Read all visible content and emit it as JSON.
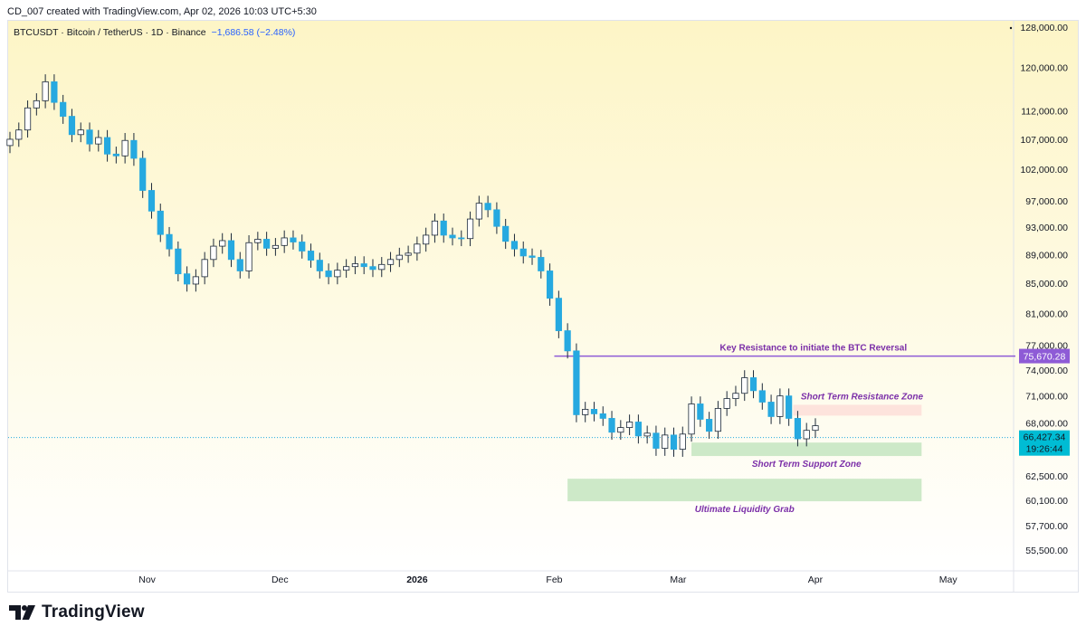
{
  "header": {
    "credit": "CD_007 created with TradingView.com, Apr 02, 2026 10:03 UTC+5:30"
  },
  "branding": {
    "logo_text": "TradingView",
    "logo_icon": "tradingview-logo-icon"
  },
  "colors": {
    "up": "#ffffff",
    "down": "#26a9e0",
    "wick": "#1d2a3a",
    "resistance_line": "#8e5bd6",
    "annotation_text": "#7b2fa8",
    "support_zone": "#cde9c8",
    "resistance_zone": "#fde3dc",
    "last_price_bg": "#00bcd4",
    "bg_top": "#fdf5c6",
    "bg_bottom": "#ffffff"
  },
  "chart_data": {
    "type": "candlestick",
    "title": "BTCUSDT · Bitcoin / TetherUS · 1D · Binance",
    "change": "−1,686.58 (−2.48%)",
    "y_scale": "log",
    "ylim": [
      53500,
      130000
    ],
    "grid": false,
    "y_ticks": [
      "128,000.00",
      "120,000.00",
      "112,000.00",
      "107,000.00",
      "102,000.00",
      "97,000.00",
      "93,000.00",
      "89,000.00",
      "85,000.00",
      "81,000.00",
      "77,000.00",
      "74,000.00",
      "71,000.00",
      "68,000.00",
      "62,500.00",
      "60,100.00",
      "57,700.00",
      "55,500.00"
    ],
    "x_ticks": [
      {
        "label": "Nov",
        "date": "2025-11-01",
        "bold": false
      },
      {
        "label": "Dec",
        "date": "2025-12-01",
        "bold": false
      },
      {
        "label": "2026",
        "date": "2026-01-01",
        "bold": true
      },
      {
        "label": "Feb",
        "date": "2026-02-01",
        "bold": false
      },
      {
        "label": "Mar",
        "date": "2026-03-01",
        "bold": false
      },
      {
        "label": "Apr",
        "date": "2026-04-01",
        "bold": false
      },
      {
        "label": "May",
        "date": "2026-05-01",
        "bold": false
      }
    ],
    "last_price": {
      "label": "66,427.34",
      "value": 66427.34,
      "countdown": "19:26:44"
    },
    "resistance": {
      "label": "75,670.28",
      "value": 75670.28,
      "text": "Key Resistance to initiate the BTC Reversal",
      "from": "2026-02-01",
      "to": "2026-05-14"
    },
    "zones": [
      {
        "name": "Short Term Resistance Zone",
        "from": "2026-03-27",
        "to": "2026-04-25",
        "low": 68800,
        "high": 70000,
        "kind": "resistance"
      },
      {
        "name": "Short Term Support Zone",
        "from": "2026-03-04",
        "to": "2026-04-25",
        "low": 64500,
        "high": 65900,
        "kind": "support"
      },
      {
        "name": "Ultimate Liquidity Grab",
        "from": "2026-02-04",
        "to": "2026-04-25",
        "low": 60000,
        "high": 62200,
        "kind": "support"
      }
    ],
    "closes": [
      [
        "2025-10-01",
        107000
      ],
      [
        "2025-10-03",
        108600
      ],
      [
        "2025-10-05",
        112500
      ],
      [
        "2025-10-07",
        113800
      ],
      [
        "2025-10-09",
        117300
      ],
      [
        "2025-10-11",
        113500
      ],
      [
        "2025-10-13",
        111000
      ],
      [
        "2025-10-15",
        107800
      ],
      [
        "2025-10-17",
        108600
      ],
      [
        "2025-10-19",
        106200
      ],
      [
        "2025-10-21",
        107300
      ],
      [
        "2025-10-23",
        104500
      ],
      [
        "2025-10-25",
        104200
      ],
      [
        "2025-10-27",
        106800
      ],
      [
        "2025-10-29",
        103800
      ],
      [
        "2025-10-31",
        98600
      ],
      [
        "2025-11-02",
        95400
      ],
      [
        "2025-11-04",
        91900
      ],
      [
        "2025-11-06",
        89800
      ],
      [
        "2025-11-08",
        86300
      ],
      [
        "2025-11-10",
        84900
      ],
      [
        "2025-11-12",
        85900
      ],
      [
        "2025-11-14",
        88300
      ],
      [
        "2025-11-16",
        90200
      ],
      [
        "2025-11-18",
        91000
      ],
      [
        "2025-11-20",
        88300
      ],
      [
        "2025-11-22",
        86700
      ],
      [
        "2025-11-24",
        90700
      ],
      [
        "2025-11-26",
        91200
      ],
      [
        "2025-11-28",
        89900
      ],
      [
        "2025-11-30",
        90300
      ],
      [
        "2025-12-02",
        91400
      ],
      [
        "2025-12-04",
        90800
      ],
      [
        "2025-12-06",
        89500
      ],
      [
        "2025-12-08",
        88200
      ],
      [
        "2025-12-10",
        86700
      ],
      [
        "2025-12-12",
        85900
      ],
      [
        "2025-12-14",
        86800
      ],
      [
        "2025-12-16",
        87300
      ],
      [
        "2025-12-18",
        87700
      ],
      [
        "2025-12-20",
        87300
      ],
      [
        "2025-12-22",
        86900
      ],
      [
        "2025-12-24",
        87600
      ],
      [
        "2025-12-26",
        88300
      ],
      [
        "2025-12-28",
        88900
      ],
      [
        "2025-12-30",
        89200
      ],
      [
        "2026-01-01",
        90500
      ],
      [
        "2026-01-03",
        91800
      ],
      [
        "2026-01-05",
        93900
      ],
      [
        "2026-01-07",
        91800
      ],
      [
        "2026-01-09",
        91400
      ],
      [
        "2026-01-11",
        91300
      ],
      [
        "2026-01-13",
        94200
      ],
      [
        "2026-01-15",
        96600
      ],
      [
        "2026-01-17",
        95600
      ],
      [
        "2026-01-19",
        93100
      ],
      [
        "2026-01-21",
        90900
      ],
      [
        "2026-01-23",
        89800
      ],
      [
        "2026-01-25",
        88800
      ],
      [
        "2026-01-27",
        88600
      ],
      [
        "2026-01-29",
        86700
      ],
      [
        "2026-01-31",
        83000
      ],
      [
        "2026-02-02",
        78800
      ],
      [
        "2026-02-04",
        76300
      ],
      [
        "2026-02-06",
        68900
      ],
      [
        "2026-02-08",
        69500
      ],
      [
        "2026-02-10",
        69000
      ],
      [
        "2026-02-12",
        68500
      ],
      [
        "2026-02-14",
        67000
      ],
      [
        "2026-02-16",
        67500
      ],
      [
        "2026-02-18",
        68100
      ],
      [
        "2026-02-20",
        66600
      ],
      [
        "2026-02-22",
        66900
      ],
      [
        "2026-02-24",
        65300
      ],
      [
        "2026-02-26",
        66700
      ],
      [
        "2026-02-28",
        65200
      ],
      [
        "2026-03-02",
        66800
      ],
      [
        "2026-03-04",
        70100
      ],
      [
        "2026-03-06",
        68400
      ],
      [
        "2026-03-08",
        67100
      ],
      [
        "2026-03-10",
        69600
      ],
      [
        "2026-03-12",
        70700
      ],
      [
        "2026-03-14",
        71300
      ],
      [
        "2026-03-16",
        73100
      ],
      [
        "2026-03-18",
        71600
      ],
      [
        "2026-03-20",
        70300
      ],
      [
        "2026-03-22",
        68700
      ],
      [
        "2026-03-24",
        71000
      ],
      [
        "2026-03-26",
        68500
      ],
      [
        "2026-03-28",
        66300
      ],
      [
        "2026-03-30",
        67200
      ],
      [
        "2026-04-01",
        67700
      ]
    ]
  }
}
